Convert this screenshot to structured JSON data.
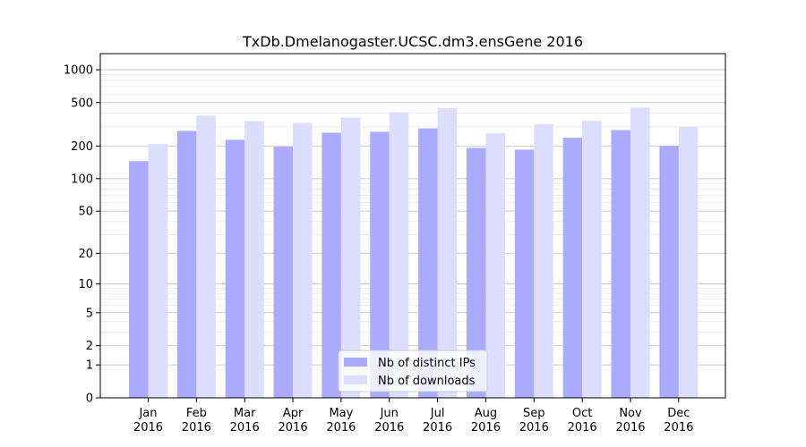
{
  "chart_data": {
    "type": "bar",
    "title": "TxDb.Dmelanogaster.UCSC.dm3.ensGene 2016",
    "xlabel": "",
    "ylabel": "",
    "yscale": "log1p",
    "yticks": [
      0,
      1,
      2,
      5,
      10,
      20,
      50,
      100,
      200,
      500,
      1000
    ],
    "ytick_labels": [
      "0",
      "1",
      "2",
      "5",
      "10",
      "20",
      "50",
      "100",
      "200",
      "500",
      "1000"
    ],
    "ylim": [
      0,
      1400
    ],
    "grid": true,
    "legend_position": "lower-center",
    "categories": [
      {
        "month": "Jan",
        "year": "2016"
      },
      {
        "month": "Feb",
        "year": "2016"
      },
      {
        "month": "Mar",
        "year": "2016"
      },
      {
        "month": "Apr",
        "year": "2016"
      },
      {
        "month": "May",
        "year": "2016"
      },
      {
        "month": "Jun",
        "year": "2016"
      },
      {
        "month": "Jul",
        "year": "2016"
      },
      {
        "month": "Aug",
        "year": "2016"
      },
      {
        "month": "Sep",
        "year": "2016"
      },
      {
        "month": "Oct",
        "year": "2016"
      },
      {
        "month": "Nov",
        "year": "2016"
      },
      {
        "month": "Dec",
        "year": "2016"
      }
    ],
    "series": [
      {
        "name": "Nb of distinct IPs",
        "color": "#aaaaff",
        "values": [
          145,
          275,
          228,
          197,
          265,
          270,
          290,
          192,
          185,
          238,
          280,
          200
        ]
      },
      {
        "name": "Nb of downloads",
        "color": "#ddddff",
        "values": [
          208,
          380,
          338,
          325,
          365,
          408,
          445,
          262,
          318,
          340,
          452,
          300
        ]
      }
    ]
  }
}
